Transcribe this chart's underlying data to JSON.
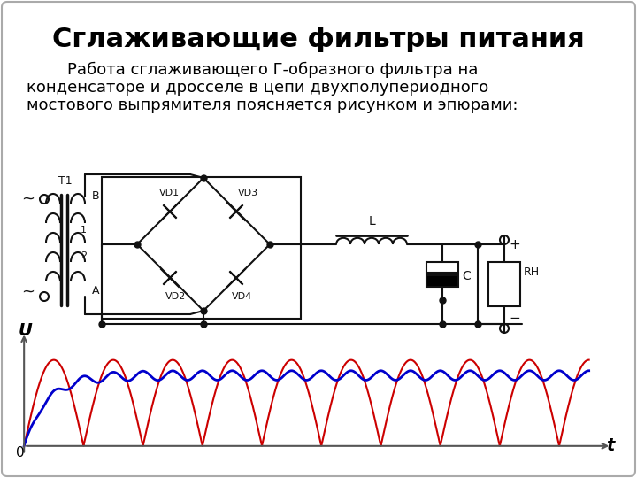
{
  "title": "Сглаживающие фильтры питания",
  "body_lines": [
    "        Работа сглаживающего Г-образного фильтра на",
    "конденсаторе и дросселе в цепи двухполупериодного",
    "мостового выпрямителя поясняется рисунком и эпюрами:"
  ],
  "bg_color": "#ffffff",
  "title_fontsize": 22,
  "body_fontsize": 13,
  "wave_red_color": "#cc0000",
  "wave_blue_color": "#0000cc",
  "circuit_color": "#111111"
}
